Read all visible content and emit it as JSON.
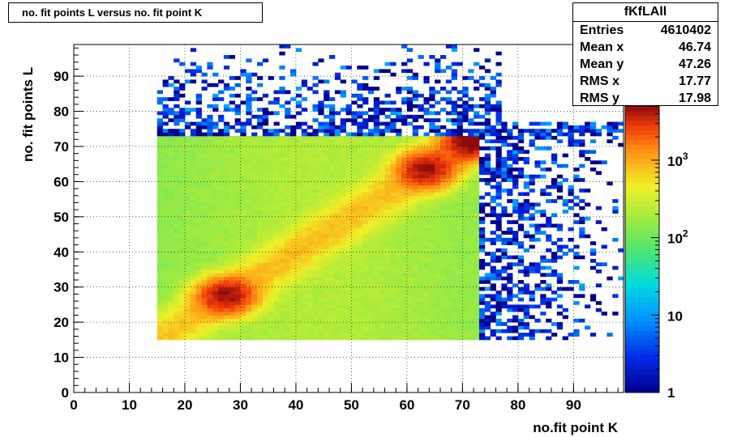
{
  "chart_data": {
    "type": "heatmap",
    "title": "no. fit points L versus no. fit point K",
    "xlabel": "no.fit point K",
    "ylabel": "no. fit points  L",
    "xlim": [
      0,
      99
    ],
    "ylim": [
      0,
      99
    ],
    "x_ticks": [
      "0",
      "10",
      "20",
      "30",
      "40",
      "50",
      "60",
      "70",
      "80",
      "90"
    ],
    "y_ticks": [
      "0",
      "10",
      "20",
      "30",
      "40",
      "50",
      "60",
      "70",
      "80",
      "90"
    ],
    "z_scale": "log",
    "z_range": [
      1,
      5000
    ],
    "z_ticks": [
      {
        "value": 1,
        "base": "1",
        "exp": ""
      },
      {
        "value": 10,
        "base": "10",
        "exp": ""
      },
      {
        "value": 100,
        "base": "10",
        "exp": "2"
      },
      {
        "value": 1000,
        "base": "10",
        "exp": "3"
      }
    ],
    "grid": true,
    "dense_region": {
      "x": [
        15,
        72
      ],
      "y": [
        15,
        72
      ]
    },
    "hotspots": [
      {
        "x": 27,
        "y": 27,
        "value": 4000
      },
      {
        "x": 63,
        "y": 63,
        "value": 4000
      },
      {
        "x": 71,
        "y": 71,
        "value": 5000
      }
    ],
    "stats": {
      "name": "fKfLAll",
      "rows": [
        {
          "label": "Entries",
          "value": "4610402"
        },
        {
          "label": "Mean x",
          "value": "46.74"
        },
        {
          "label": "Mean y",
          "value": "47.26"
        },
        {
          "label": "RMS x",
          "value": "17.77"
        },
        {
          "label": "RMS y",
          "value": "17.98"
        }
      ]
    }
  }
}
